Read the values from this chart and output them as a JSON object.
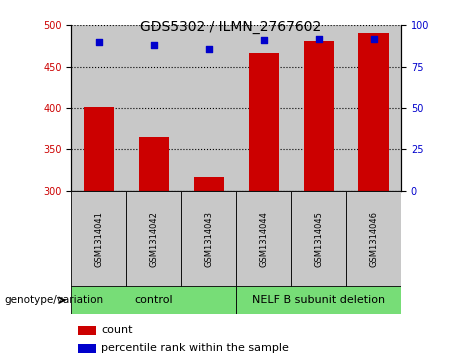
{
  "title": "GDS5302 / ILMN_2767602",
  "samples": [
    "GSM1314041",
    "GSM1314042",
    "GSM1314043",
    "GSM1314044",
    "GSM1314045",
    "GSM1314046"
  ],
  "counts": [
    401,
    365,
    317,
    467,
    481,
    491
  ],
  "percentile_ranks": [
    90,
    88,
    86,
    91,
    92,
    92
  ],
  "ylim_left": [
    300,
    500
  ],
  "ylim_right": [
    0,
    100
  ],
  "yticks_left": [
    300,
    350,
    400,
    450,
    500
  ],
  "yticks_right": [
    0,
    25,
    50,
    75,
    100
  ],
  "bar_color": "#cc0000",
  "dot_color": "#0000cc",
  "plot_bg_color": "#c8c8c8",
  "sample_bg_color": "#c8c8c8",
  "control_color": "#77dd77",
  "deletion_color": "#77dd77",
  "group_labels": [
    "control",
    "NELF B subunit deletion"
  ],
  "genotype_label": "genotype/variation",
  "legend_count": "count",
  "legend_percentile": "percentile rank within the sample",
  "title_fontsize": 10,
  "tick_fontsize": 7,
  "label_fontsize": 7.5,
  "group_fontsize": 8
}
